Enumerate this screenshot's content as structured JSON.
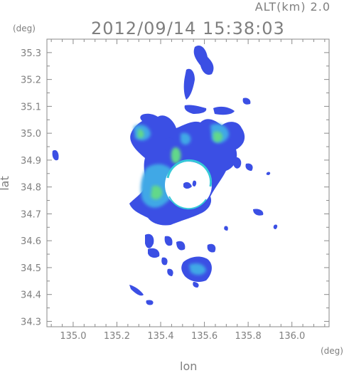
{
  "chart_data": {
    "type": "heatmap",
    "title": "2012/09/14 15:38:03",
    "subtitle": "ALT(km) 2.0",
    "xlabel": "lon",
    "ylabel": "lat",
    "x_unit": "(deg)",
    "y_unit": "(deg)",
    "xlim": [
      134.88,
      136.17
    ],
    "ylim": [
      34.28,
      35.35
    ],
    "x_ticks": [
      135.0,
      135.2,
      135.4,
      135.6,
      135.8,
      136.0
    ],
    "x_tick_labels": [
      "135.0",
      "135.2",
      "135.4",
      "135.6",
      "135.8",
      "136.0"
    ],
    "y_ticks": [
      34.3,
      34.4,
      34.5,
      34.6,
      34.7,
      34.8,
      34.9,
      35.0,
      35.1,
      35.2,
      35.3
    ],
    "y_tick_labels": [
      "34.3",
      "34.4",
      "34.5",
      "34.6",
      "34.7",
      "34.8",
      "34.9",
      "35.0",
      "35.1",
      "35.2",
      "35.3"
    ],
    "grid": false,
    "colors": {
      "axis": "#8a8a8a",
      "low": "#3c4fe6",
      "mid": "#36c8d8",
      "high": "#6ee07a",
      "radar_blank": "#ffffff"
    },
    "echo_regions": [
      {
        "name": "main cluster",
        "lon": [
          135.34,
          135.74
        ],
        "lat": [
          34.68,
          35.02
        ],
        "intensity": "moderate"
      },
      {
        "name": "northern band",
        "lon": [
          135.52,
          135.62
        ],
        "lat": [
          35.18,
          35.32
        ],
        "intensity": "weak"
      },
      {
        "name": "southern cell",
        "lon": [
          135.54,
          135.62
        ],
        "lat": [
          34.46,
          34.52
        ],
        "intensity": "moderate"
      },
      {
        "name": "western cell",
        "lon": [
          134.9,
          134.93
        ],
        "lat": [
          34.9,
          34.93
        ],
        "intensity": "weak"
      },
      {
        "name": "eastern cell",
        "lon": [
          135.86,
          135.89
        ],
        "lat": [
          34.69,
          34.71
        ],
        "intensity": "weak"
      }
    ],
    "radar_site": {
      "lon": 135.52,
      "lat": 34.8
    }
  }
}
